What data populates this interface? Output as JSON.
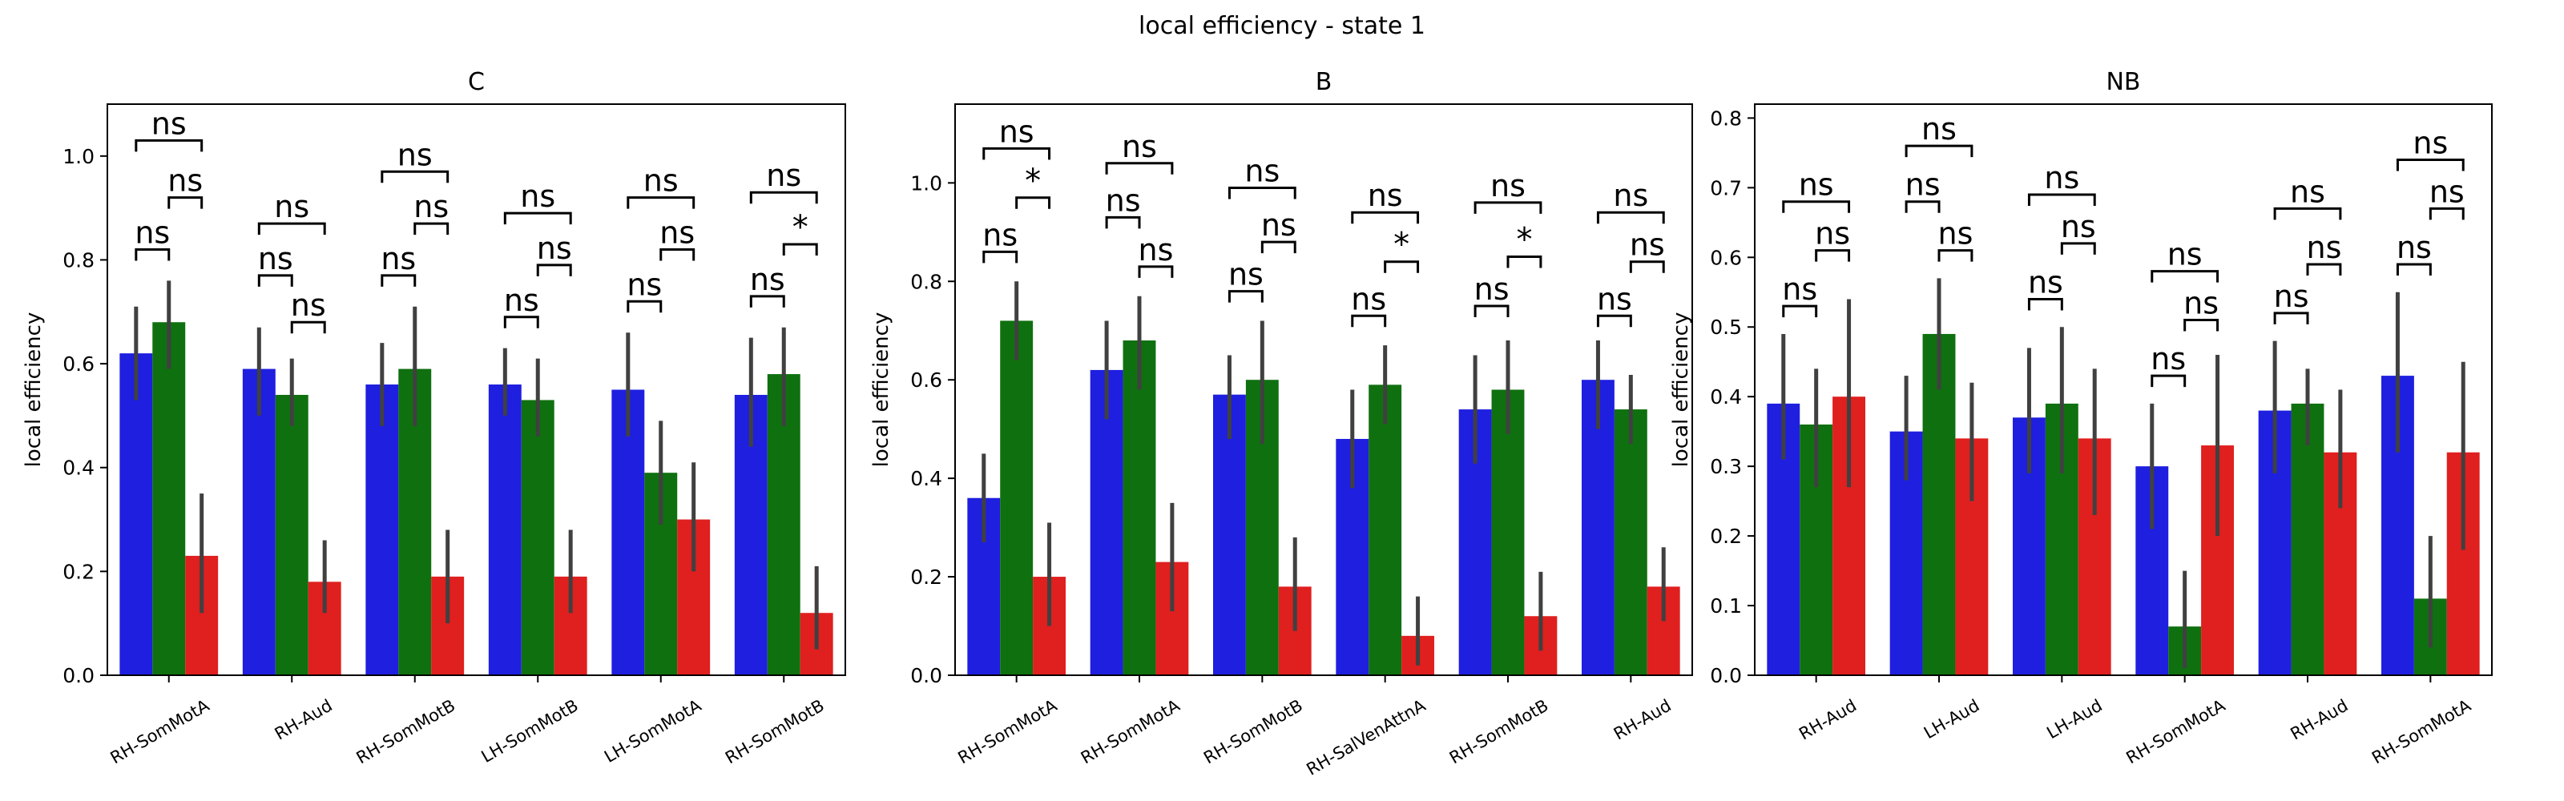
{
  "figure_title": "local efficiency - state 1",
  "colors": {
    "series1": "#1f1fe0",
    "series2": "#0f700f",
    "series3": "#e01f1f",
    "errorbar": "#404040"
  },
  "chart_data": [
    {
      "type": "bar",
      "title": "C",
      "ylabel": "local efficiency",
      "ylim": [
        0,
        1.1
      ],
      "yticks": [
        0.0,
        0.2,
        0.4,
        0.6,
        0.8,
        1.0
      ],
      "ytick_labels": [
        "0.0",
        "0.2",
        "0.4",
        "0.6",
        "0.8",
        "1.0"
      ],
      "categories": [
        "RH-SomMotA",
        "RH-Aud",
        "RH-SomMotB",
        "LH-SomMotB",
        "LH-SomMotA",
        "RH-SomMotB"
      ],
      "series": [
        {
          "values": [
            0.62,
            0.59,
            0.56,
            0.56,
            0.55,
            0.54
          ],
          "err_low": [
            0.53,
            0.5,
            0.48,
            0.5,
            0.46,
            0.44
          ],
          "err_high": [
            0.71,
            0.67,
            0.64,
            0.63,
            0.66,
            0.65
          ]
        },
        {
          "values": [
            0.68,
            0.54,
            0.59,
            0.53,
            0.39,
            0.58
          ],
          "err_low": [
            0.59,
            0.48,
            0.48,
            0.46,
            0.29,
            0.48
          ],
          "err_high": [
            0.76,
            0.61,
            0.71,
            0.61,
            0.49,
            0.67
          ]
        },
        {
          "values": [
            0.23,
            0.18,
            0.19,
            0.19,
            0.3,
            0.12
          ],
          "err_low": [
            0.12,
            0.12,
            0.1,
            0.12,
            0.2,
            0.05
          ],
          "err_high": [
            0.35,
            0.26,
            0.28,
            0.28,
            0.41,
            0.21
          ]
        }
      ],
      "annotations": [
        {
          "labels": [
            "ns",
            "ns",
            "ns"
          ],
          "y12": 0.82,
          "y23": 0.92,
          "y13": 1.03
        },
        {
          "labels": [
            "ns",
            "ns",
            "ns"
          ],
          "y12": 0.77,
          "y23": 0.68,
          "y13": 0.87
        },
        {
          "labels": [
            "ns",
            "ns",
            "ns"
          ],
          "y12": 0.77,
          "y23": 0.87,
          "y13": 0.97
        },
        {
          "labels": [
            "ns",
            "ns",
            "ns"
          ],
          "y12": 0.69,
          "y23": 0.79,
          "y13": 0.89
        },
        {
          "labels": [
            "ns",
            "ns",
            "ns"
          ],
          "y12": 0.72,
          "y23": 0.82,
          "y13": 0.92
        },
        {
          "labels": [
            "ns",
            "*",
            "ns"
          ],
          "y12": 0.73,
          "y23": 0.83,
          "y13": 0.93
        }
      ]
    },
    {
      "type": "bar",
      "title": "B",
      "ylabel": "local efficiency",
      "ylim": [
        0,
        1.16
      ],
      "yticks": [
        0.0,
        0.2,
        0.4,
        0.6,
        0.8,
        1.0
      ],
      "ytick_labels": [
        "0.0",
        "0.2",
        "0.4",
        "0.6",
        "0.8",
        "1.0"
      ],
      "categories": [
        "RH-SomMotA",
        "RH-SomMotA",
        "RH-SomMotB",
        "RH-SalVenAttnA",
        "RH-SomMotB",
        "RH-Aud"
      ],
      "series": [
        {
          "values": [
            0.36,
            0.62,
            0.57,
            0.48,
            0.54,
            0.6
          ],
          "err_low": [
            0.27,
            0.52,
            0.48,
            0.38,
            0.43,
            0.5
          ],
          "err_high": [
            0.45,
            0.72,
            0.65,
            0.58,
            0.65,
            0.68
          ]
        },
        {
          "values": [
            0.72,
            0.68,
            0.6,
            0.59,
            0.58,
            0.54
          ],
          "err_low": [
            0.64,
            0.58,
            0.47,
            0.51,
            0.49,
            0.47
          ],
          "err_high": [
            0.8,
            0.77,
            0.72,
            0.67,
            0.68,
            0.61
          ]
        },
        {
          "values": [
            0.2,
            0.23,
            0.18,
            0.08,
            0.12,
            0.18
          ],
          "err_low": [
            0.1,
            0.13,
            0.09,
            0.02,
            0.05,
            0.11
          ],
          "err_high": [
            0.31,
            0.35,
            0.28,
            0.16,
            0.21,
            0.26
          ]
        }
      ],
      "annotations": [
        {
          "labels": [
            "ns",
            "*",
            "ns"
          ],
          "y12": 0.86,
          "y23": 0.97,
          "y13": 1.07
        },
        {
          "labels": [
            "ns",
            "ns",
            "ns"
          ],
          "y12": 0.93,
          "y23": 0.83,
          "y13": 1.04
        },
        {
          "labels": [
            "ns",
            "ns",
            "ns"
          ],
          "y12": 0.78,
          "y23": 0.88,
          "y13": 0.99
        },
        {
          "labels": [
            "ns",
            "*",
            "ns"
          ],
          "y12": 0.73,
          "y23": 0.84,
          "y13": 0.94
        },
        {
          "labels": [
            "ns",
            "*",
            "ns"
          ],
          "y12": 0.75,
          "y23": 0.85,
          "y13": 0.96
        },
        {
          "labels": [
            "ns",
            "ns",
            "ns"
          ],
          "y12": 0.73,
          "y23": 0.84,
          "y13": 0.94
        }
      ]
    },
    {
      "type": "bar",
      "title": "NB",
      "ylabel": "local efficiency",
      "ylim": [
        0,
        0.82
      ],
      "yticks": [
        0.0,
        0.1,
        0.2,
        0.3,
        0.4,
        0.5,
        0.6,
        0.7,
        0.8
      ],
      "ytick_labels": [
        "0.0",
        "0.1",
        "0.2",
        "0.3",
        "0.4",
        "0.5",
        "0.6",
        "0.7",
        "0.8"
      ],
      "categories": [
        "RH-Aud",
        "LH-Aud",
        "LH-Aud",
        "RH-SomMotA",
        "RH-Aud",
        "RH-SomMotA"
      ],
      "series": [
        {
          "values": [
            0.39,
            0.35,
            0.37,
            0.3,
            0.38,
            0.43
          ],
          "err_low": [
            0.31,
            0.28,
            0.29,
            0.21,
            0.29,
            0.32
          ],
          "err_high": [
            0.49,
            0.43,
            0.47,
            0.39,
            0.48,
            0.55
          ]
        },
        {
          "values": [
            0.36,
            0.49,
            0.39,
            0.07,
            0.39,
            0.11
          ],
          "err_low": [
            0.27,
            0.41,
            0.29,
            0.01,
            0.33,
            0.04
          ],
          "err_high": [
            0.44,
            0.57,
            0.5,
            0.15,
            0.44,
            0.2
          ]
        },
        {
          "values": [
            0.4,
            0.34,
            0.34,
            0.33,
            0.32,
            0.32
          ],
          "err_low": [
            0.27,
            0.25,
            0.23,
            0.2,
            0.24,
            0.18
          ],
          "err_high": [
            0.54,
            0.42,
            0.44,
            0.46,
            0.41,
            0.45
          ]
        }
      ],
      "annotations": [
        {
          "labels": [
            "ns",
            "ns",
            "ns"
          ],
          "y12": 0.53,
          "y23": 0.61,
          "y13": 0.68
        },
        {
          "labels": [
            "ns",
            "ns",
            "ns"
          ],
          "y12": 0.68,
          "y23": 0.61,
          "y13": 0.76
        },
        {
          "labels": [
            "ns",
            "ns",
            "ns"
          ],
          "y12": 0.54,
          "y23": 0.62,
          "y13": 0.69
        },
        {
          "labels": [
            "ns",
            "ns",
            "ns"
          ],
          "y12": 0.43,
          "y23": 0.51,
          "y13": 0.58
        },
        {
          "labels": [
            "ns",
            "ns",
            "ns"
          ],
          "y12": 0.52,
          "y23": 0.59,
          "y13": 0.67
        },
        {
          "labels": [
            "ns",
            "ns",
            "ns"
          ],
          "y12": 0.59,
          "y23": 0.67,
          "y13": 0.74
        }
      ]
    }
  ]
}
